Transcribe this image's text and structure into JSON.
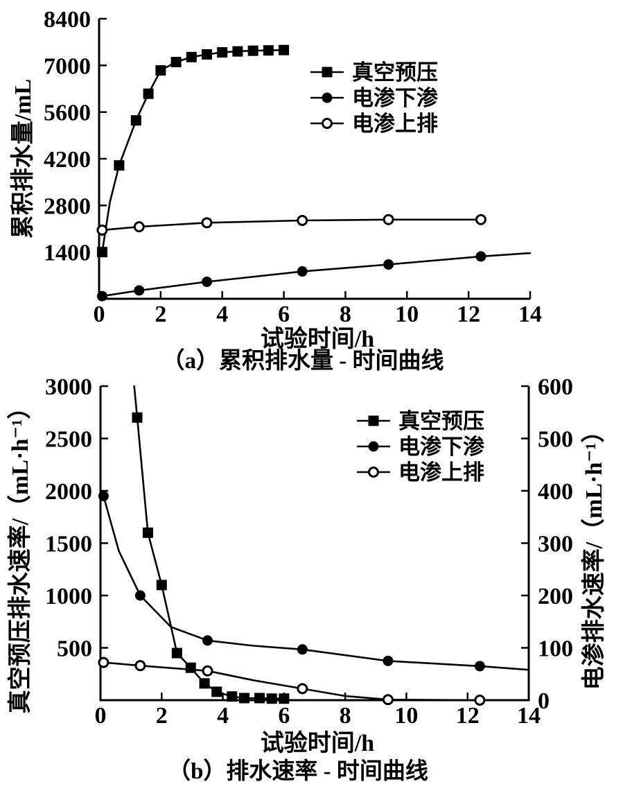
{
  "figure": {
    "background": "#ffffff",
    "ink": "#000000"
  },
  "legend": {
    "entries": [
      {
        "label": "真空预压",
        "marker": "filled-square"
      },
      {
        "label": "电渗下渗",
        "marker": "filled-circle"
      },
      {
        "label": "电渗上排",
        "marker": "open-circle"
      }
    ]
  },
  "chart_data": [
    {
      "id": "a",
      "type": "line",
      "caption": "（a）累积排水量 - 时间曲线",
      "xlabel": "试验时间/h",
      "ylabel": "累积排水量/mL",
      "xlim": [
        0,
        14
      ],
      "xticks": [
        0,
        2,
        4,
        6,
        8,
        10,
        12,
        14
      ],
      "ylim": [
        0,
        8400
      ],
      "yticks": [
        1400,
        2800,
        4200,
        5600,
        7000,
        8400
      ],
      "grid": false,
      "legend_position": "inside-upper-right",
      "series": [
        {
          "name": "真空预压",
          "marker": "filled-square",
          "axis": "left",
          "points": [
            [
              0.1,
              1400
            ],
            [
              0.65,
              4000
            ],
            [
              1.2,
              5350
            ],
            [
              1.6,
              6150
            ],
            [
              2,
              6850
            ],
            [
              2.5,
              7100
            ],
            [
              3,
              7250
            ],
            [
              3.5,
              7330
            ],
            [
              4,
              7390
            ],
            [
              4.5,
              7420
            ],
            [
              5,
              7440
            ],
            [
              5.5,
              7450
            ],
            [
              6,
              7460
            ]
          ],
          "path": [
            [
              0.1,
              1400
            ],
            [
              0.35,
              2900
            ],
            [
              0.65,
              4000
            ],
            [
              1.2,
              5350
            ],
            [
              1.6,
              6150
            ],
            [
              2,
              6850
            ],
            [
              2.5,
              7100
            ],
            [
              3,
              7250
            ],
            [
              3.5,
              7330
            ],
            [
              4,
              7390
            ],
            [
              4.5,
              7420
            ],
            [
              5,
              7440
            ],
            [
              5.5,
              7450
            ],
            [
              6,
              7460
            ]
          ]
        },
        {
          "name": "电渗下渗",
          "marker": "filled-circle",
          "axis": "left",
          "points": [
            [
              0.1,
              80
            ],
            [
              1.3,
              250
            ],
            [
              3.5,
              510
            ],
            [
              6.6,
              820
            ],
            [
              9.4,
              1030
            ],
            [
              12.4,
              1270
            ]
          ],
          "path": [
            [
              0.1,
              80
            ],
            [
              1.3,
              250
            ],
            [
              3.5,
              510
            ],
            [
              6.6,
              820
            ],
            [
              9.4,
              1030
            ],
            [
              12.4,
              1270
            ],
            [
              14,
              1370
            ]
          ]
        },
        {
          "name": "电渗上排",
          "marker": "open-circle",
          "axis": "left",
          "points": [
            [
              0.1,
              2060
            ],
            [
              1.3,
              2160
            ],
            [
              3.5,
              2280
            ],
            [
              6.6,
              2350
            ],
            [
              9.4,
              2375
            ],
            [
              12.4,
              2375
            ]
          ],
          "path": [
            [
              0.1,
              2060
            ],
            [
              1.3,
              2160
            ],
            [
              3.5,
              2280
            ],
            [
              6.6,
              2350
            ],
            [
              9.4,
              2375
            ],
            [
              12.4,
              2375
            ]
          ]
        }
      ]
    },
    {
      "id": "b",
      "type": "line",
      "caption": "（b）排水速率 - 时间曲线",
      "xlabel": "试验时间/h",
      "ylabel_left": "真空预压排水速率/（mL·h⁻¹）",
      "ylabel_right": "电渗排水速率/（mL·h⁻¹）",
      "xlim": [
        0,
        14
      ],
      "xticks": [
        0,
        2,
        4,
        6,
        8,
        10,
        12,
        14
      ],
      "ylim_left": [
        0,
        3000
      ],
      "yticks_left": [
        500,
        1000,
        1500,
        2000,
        2500,
        3000
      ],
      "ylim_right": [
        0,
        600
      ],
      "yticks_right": [
        0,
        100,
        200,
        300,
        400,
        500,
        600
      ],
      "grid": false,
      "legend_position": "inside-upper-right",
      "series": [
        {
          "name": "真空预压",
          "marker": "filled-square",
          "axis": "left",
          "points": [
            [
              1.2,
              2700
            ],
            [
              1.55,
              1600
            ],
            [
              2,
              1100
            ],
            [
              2.5,
              450
            ],
            [
              2.95,
              310
            ],
            [
              3.4,
              160
            ],
            [
              3.8,
              80
            ],
            [
              4.3,
              35
            ],
            [
              4.7,
              20
            ],
            [
              5.2,
              20
            ],
            [
              5.6,
              15
            ],
            [
              6,
              15
            ]
          ],
          "path": [
            [
              1.02,
              3250
            ],
            [
              1.2,
              2700
            ],
            [
              1.55,
              1600
            ],
            [
              2,
              1100
            ],
            [
              2.5,
              450
            ],
            [
              2.95,
              310
            ],
            [
              3.4,
              160
            ],
            [
              3.8,
              80
            ],
            [
              4.3,
              35
            ],
            [
              4.7,
              20
            ],
            [
              5.2,
              20
            ],
            [
              5.6,
              15
            ],
            [
              6,
              15
            ]
          ]
        },
        {
          "name": "电渗下渗",
          "marker": "filled-circle",
          "axis": "right",
          "points": [
            [
              0.1,
              390
            ],
            [
              1.3,
              200
            ],
            [
              3.5,
              114
            ],
            [
              6.6,
              97
            ],
            [
              9.4,
              75
            ],
            [
              12.4,
              65
            ]
          ],
          "path": [
            [
              0.1,
              390
            ],
            [
              0.6,
              285
            ],
            [
              1.3,
              200
            ],
            [
              2.3,
              140
            ],
            [
              3.5,
              114
            ],
            [
              5,
              104
            ],
            [
              6.6,
              97
            ],
            [
              9.4,
              75
            ],
            [
              12.4,
              65
            ],
            [
              14,
              58
            ]
          ]
        },
        {
          "name": "电渗上排",
          "marker": "open-circle",
          "axis": "right",
          "points": [
            [
              0.1,
              72
            ],
            [
              1.3,
              66
            ],
            [
              3.5,
              56
            ],
            [
              6.6,
              22
            ],
            [
              9.4,
              1
            ],
            [
              12.4,
              0
            ]
          ],
          "path": [
            [
              0.1,
              72
            ],
            [
              1.3,
              66
            ],
            [
              3.5,
              56
            ],
            [
              5,
              38
            ],
            [
              6.6,
              22
            ],
            [
              8,
              8
            ],
            [
              9.4,
              1
            ],
            [
              12.4,
              0
            ]
          ]
        }
      ]
    }
  ]
}
